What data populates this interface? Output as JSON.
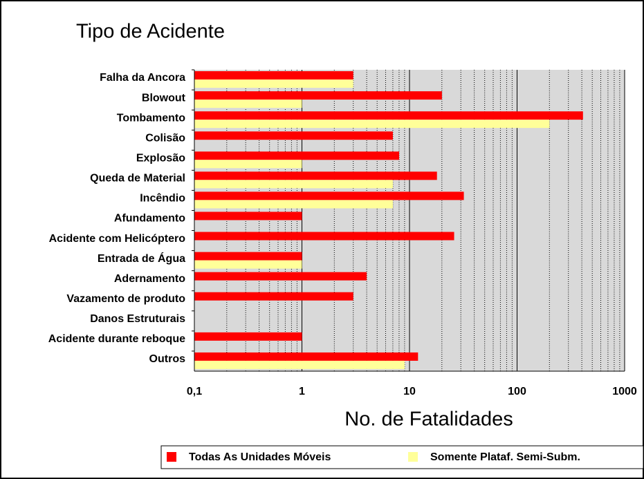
{
  "chart_data": {
    "type": "barh",
    "title": "Tipo de Acidente",
    "x_label": "No. de Fatalidades",
    "categories": [
      "Falha da Ancora",
      "Blowout",
      "Tombamento",
      "Colisão",
      "Explosão",
      "Queda de Material",
      "Incêndio",
      "Afundamento",
      "Acidente com Helicóptero",
      "Entrada de Água",
      "Adernamento",
      "Vazamento de produto",
      "Danos Estruturais",
      "Acidente durante reboque",
      "Outros"
    ],
    "series": [
      {
        "name": "Todas As Unidades Móveis",
        "color": "#ff0000",
        "values": [
          3,
          20,
          410,
          7,
          8,
          18,
          32,
          1,
          26,
          1,
          4,
          3,
          null,
          1,
          12
        ]
      },
      {
        "name": "Somente Plataf. Semi-Subm.",
        "color": "#ffff99",
        "values": [
          3,
          1,
          200,
          null,
          1,
          7,
          7,
          null,
          null,
          1,
          null,
          null,
          null,
          null,
          9
        ]
      }
    ],
    "x_scale": "log",
    "xlim": [
      0.1,
      1000
    ],
    "xticks": [
      {
        "value": 0.1,
        "label": "0,1"
      },
      1,
      10,
      100,
      1000
    ],
    "grid": true,
    "legend": "bottom"
  }
}
